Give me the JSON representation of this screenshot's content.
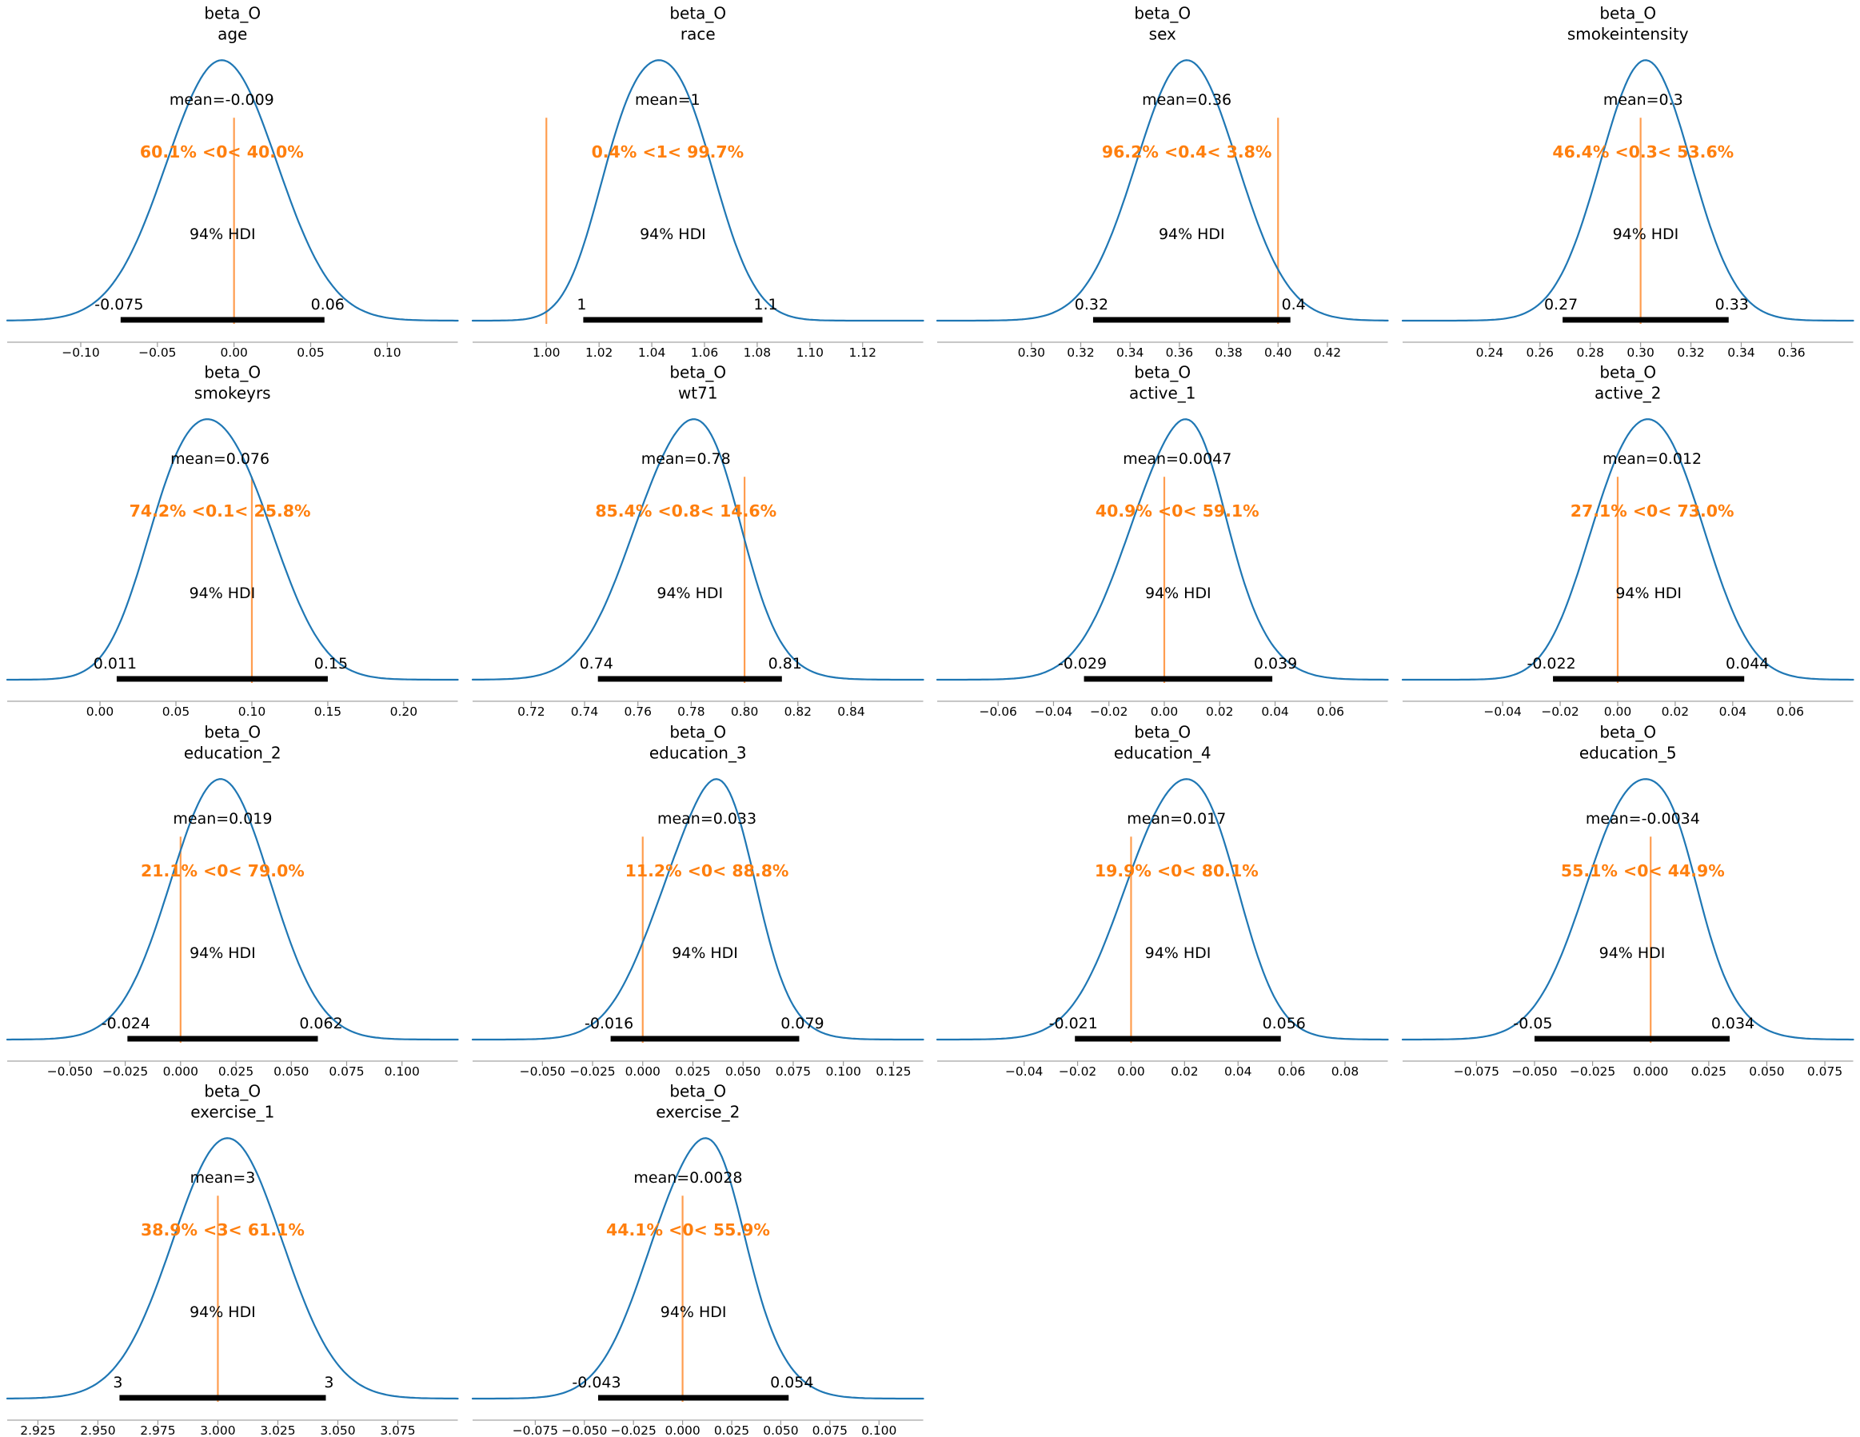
{
  "figure": {
    "kind": "arviz-plot-posterior-grid",
    "rows": 4,
    "cols": 4,
    "hdi_text": "94% HDI"
  },
  "colors": {
    "curve": "#1f77b4",
    "ref_line": "#ff9d4f",
    "prob_text": "#ff7f0e",
    "hdi_bar": "#000000",
    "text": "#000000",
    "spine": "#9a9a9a",
    "background": "#ffffff"
  },
  "chart_data": {
    "type": "area",
    "description": "Grid of 14 posterior KDE density plots (ArviZ plot_posterior style) for beta_O coefficients, each with mean label, reference-value probability text, and 94% HDI bar",
    "plots": [
      {
        "title_line1": "beta_O",
        "title_line2": "age",
        "mean": -0.009,
        "mean_label": "mean=-0.009",
        "mean_x": -0.008,
        "prob_label": "60.1% <0< 40.0%",
        "ref_value": 0,
        "hdi_label": "94% HDI",
        "hdi_low": -0.075,
        "hdi_high": 0.06,
        "hdi_low_label": "-0.075",
        "hdi_high_label": "0.06",
        "hdi_bar": [
          -0.074,
          0.059
        ],
        "xlim": [
          -0.148,
          0.146
        ],
        "ticks": [
          {
            "v": -0.1,
            "label": "−0.10"
          },
          {
            "v": -0.05,
            "label": "−0.05"
          },
          {
            "v": 0.0,
            "label": "0.00"
          },
          {
            "v": 0.05,
            "label": "0.05"
          },
          {
            "v": 0.1,
            "label": "0.10"
          }
        ],
        "curve": [
          {
            "c": -0.008,
            "s": 0.036,
            "w": 1
          }
        ]
      },
      {
        "title_line1": "beta_O",
        "title_line2": "race",
        "mean": 1,
        "mean_label": "mean=1",
        "mean_x": 1.046,
        "prob_label": "0.4% <1< 99.7%",
        "ref_value": 1,
        "hdi_label": "94% HDI",
        "hdi_low": 1,
        "hdi_high": 1.1,
        "hdi_low_label": "1",
        "hdi_high_label": "1.1",
        "hdi_bar": [
          1.014,
          1.082
        ],
        "xlim": [
          0.972,
          1.143
        ],
        "ticks": [
          {
            "v": 1.0,
            "label": "1.00"
          },
          {
            "v": 1.02,
            "label": "1.02"
          },
          {
            "v": 1.04,
            "label": "1.04"
          },
          {
            "v": 1.06,
            "label": "1.06"
          },
          {
            "v": 1.08,
            "label": "1.08"
          },
          {
            "v": 1.1,
            "label": "1.10"
          },
          {
            "v": 1.12,
            "label": "1.12"
          }
        ],
        "curve": [
          {
            "c": 1.049,
            "s": 0.0155,
            "w": 1
          },
          {
            "c": 1.028,
            "s": 0.012,
            "w": 0.5
          }
        ]
      },
      {
        "title_line1": "beta_O",
        "title_line2": "sex",
        "mean": 0.36,
        "mean_label": "mean=0.36",
        "mean_x": 0.363,
        "prob_label": "96.2% <0.4< 3.8%",
        "ref_value": 0.4,
        "hdi_label": "94% HDI",
        "hdi_low": 0.32,
        "hdi_high": 0.4,
        "hdi_low_label": "0.32",
        "hdi_high_label": "0.4",
        "hdi_bar": [
          0.325,
          0.405
        ],
        "xlim": [
          0.2618,
          0.4445
        ],
        "ticks": [
          {
            "v": 0.3,
            "label": "0.30"
          },
          {
            "v": 0.32,
            "label": "0.32"
          },
          {
            "v": 0.34,
            "label": "0.34"
          },
          {
            "v": 0.36,
            "label": "0.36"
          },
          {
            "v": 0.38,
            "label": "0.38"
          },
          {
            "v": 0.4,
            "label": "0.40"
          },
          {
            "v": 0.42,
            "label": "0.42"
          }
        ],
        "curve": [
          {
            "c": 0.363,
            "s": 0.0205,
            "w": 1
          }
        ]
      },
      {
        "title_line1": "beta_O",
        "title_line2": "smokeintensity",
        "mean": 0.3,
        "mean_label": "mean=0.3",
        "mean_x": 0.301,
        "prob_label": "46.4% <0.3< 53.6%",
        "ref_value": 0.3,
        "hdi_label": "94% HDI",
        "hdi_low": 0.27,
        "hdi_high": 0.33,
        "hdi_low_label": "0.27",
        "hdi_high_label": "0.33",
        "hdi_bar": [
          0.269,
          0.335
        ],
        "xlim": [
          0.2054,
          0.3845
        ],
        "ticks": [
          {
            "v": 0.24,
            "label": "0.24"
          },
          {
            "v": 0.26,
            "label": "0.26"
          },
          {
            "v": 0.28,
            "label": "0.28"
          },
          {
            "v": 0.3,
            "label": "0.30"
          },
          {
            "v": 0.32,
            "label": "0.32"
          },
          {
            "v": 0.34,
            "label": "0.34"
          },
          {
            "v": 0.36,
            "label": "0.36"
          }
        ],
        "curve": [
          {
            "c": 0.302,
            "s": 0.018,
            "w": 1
          }
        ]
      },
      {
        "title_line1": "beta_O",
        "title_line2": "smokeyrs",
        "mean": 0.076,
        "mean_label": "mean=0.076",
        "mean_x": 0.079,
        "prob_label": "74.2% <0.1< 25.8%",
        "ref_value": 0.1,
        "hdi_label": "94% HDI",
        "hdi_low": 0.011,
        "hdi_high": 0.15,
        "hdi_low_label": "0.011",
        "hdi_high_label": "0.15",
        "hdi_bar": [
          0.011,
          0.15
        ],
        "xlim": [
          -0.0611,
          0.2356
        ],
        "ticks": [
          {
            "v": 0.0,
            "label": "0.00"
          },
          {
            "v": 0.05,
            "label": "0.05"
          },
          {
            "v": 0.1,
            "label": "0.10"
          },
          {
            "v": 0.15,
            "label": "0.15"
          },
          {
            "v": 0.2,
            "label": "0.20"
          }
        ],
        "curve": [
          {
            "c": 0.085,
            "s": 0.032,
            "w": 1
          },
          {
            "c": 0.047,
            "s": 0.024,
            "w": 0.5
          }
        ]
      },
      {
        "title_line1": "beta_O",
        "title_line2": "wt71",
        "mean": 0.78,
        "mean_label": "mean=0.78",
        "mean_x": 0.778,
        "prob_label": "85.4% <0.8< 14.6%",
        "ref_value": 0.8,
        "hdi_label": "94% HDI",
        "hdi_low": 0.74,
        "hdi_high": 0.81,
        "hdi_low_label": "0.74",
        "hdi_high_label": "0.81",
        "hdi_bar": [
          0.745,
          0.814
        ],
        "xlim": [
          0.698,
          0.867
        ],
        "ticks": [
          {
            "v": 0.72,
            "label": "0.72"
          },
          {
            "v": 0.74,
            "label": "0.74"
          },
          {
            "v": 0.76,
            "label": "0.76"
          },
          {
            "v": 0.78,
            "label": "0.78"
          },
          {
            "v": 0.8,
            "label": "0.80"
          },
          {
            "v": 0.82,
            "label": "0.82"
          },
          {
            "v": 0.84,
            "label": "0.84"
          }
        ],
        "curve": [
          {
            "c": 0.776,
            "s": 0.019,
            "w": 1
          },
          {
            "c": 0.79,
            "s": 0.011,
            "w": 0.25
          }
        ]
      },
      {
        "title_line1": "beta_O",
        "title_line2": "active_1",
        "mean": 0.0047,
        "mean_label": "mean=0.0047",
        "mean_x": 0.0047,
        "prob_label": "40.9% <0< 59.1%",
        "ref_value": 0,
        "hdi_label": "94% HDI",
        "hdi_low": -0.029,
        "hdi_high": 0.039,
        "hdi_low_label": "-0.029",
        "hdi_high_label": "0.039",
        "hdi_bar": [
          -0.029,
          0.039
        ],
        "xlim": [
          -0.082,
          0.0807
        ],
        "ticks": [
          {
            "v": -0.06,
            "label": "−0.06"
          },
          {
            "v": -0.04,
            "label": "−0.04"
          },
          {
            "v": -0.02,
            "label": "−0.02"
          },
          {
            "v": 0.0,
            "label": "0.00"
          },
          {
            "v": 0.02,
            "label": "0.02"
          },
          {
            "v": 0.04,
            "label": "0.04"
          },
          {
            "v": 0.06,
            "label": "0.06"
          }
        ],
        "curve": [
          {
            "c": 0.004,
            "s": 0.018,
            "w": 1
          },
          {
            "c": 0.013,
            "s": 0.009,
            "w": 0.2
          }
        ]
      },
      {
        "title_line1": "beta_O",
        "title_line2": "active_2",
        "mean": 0.012,
        "mean_label": "mean=0.012",
        "mean_x": 0.012,
        "prob_label": "27.1% <0< 73.0%",
        "ref_value": 0,
        "hdi_label": "94% HDI",
        "hdi_low": -0.022,
        "hdi_high": 0.044,
        "hdi_low_label": "-0.022",
        "hdi_high_label": "0.044",
        "hdi_bar": [
          -0.0225,
          0.044
        ],
        "xlim": [
          -0.0748,
          0.0819
        ],
        "ticks": [
          {
            "v": -0.04,
            "label": "−0.04"
          },
          {
            "v": -0.02,
            "label": "−0.02"
          },
          {
            "v": 0.0,
            "label": "0.00"
          },
          {
            "v": 0.02,
            "label": "0.02"
          },
          {
            "v": 0.04,
            "label": "0.04"
          },
          {
            "v": 0.06,
            "label": "0.06"
          }
        ],
        "curve": [
          {
            "c": 0.0165,
            "s": 0.0155,
            "w": 1
          },
          {
            "c": -0.003,
            "s": 0.013,
            "w": 0.5
          }
        ]
      },
      {
        "title_line1": "beta_O",
        "title_line2": "education_2",
        "mean": 0.019,
        "mean_label": "mean=0.019",
        "mean_x": 0.019,
        "prob_label": "21.1% <0< 79.0%",
        "ref_value": 0,
        "hdi_label": "94% HDI",
        "hdi_low": -0.024,
        "hdi_high": 0.062,
        "hdi_low_label": "-0.024",
        "hdi_high_label": "0.062",
        "hdi_bar": [
          -0.024,
          0.062
        ],
        "xlim": [
          -0.0783,
          0.1252
        ],
        "ticks": [
          {
            "v": -0.05,
            "label": "−0.050"
          },
          {
            "v": -0.025,
            "label": "−0.025"
          },
          {
            "v": 0.0,
            "label": "0.000"
          },
          {
            "v": 0.025,
            "label": "0.025"
          },
          {
            "v": 0.05,
            "label": "0.050"
          },
          {
            "v": 0.075,
            "label": "0.075"
          },
          {
            "v": 0.1,
            "label": "0.100"
          }
        ],
        "curve": [
          {
            "c": 0.018,
            "s": 0.0225,
            "w": 1
          }
        ]
      },
      {
        "title_line1": "beta_O",
        "title_line2": "education_3",
        "mean": 0.033,
        "mean_label": "mean=0.033",
        "mean_x": 0.032,
        "prob_label": "11.2% <0< 88.8%",
        "ref_value": 0,
        "hdi_label": "94% HDI",
        "hdi_low": -0.016,
        "hdi_high": 0.079,
        "hdi_low_label": "-0.016",
        "hdi_high_label": "0.079",
        "hdi_bar": [
          -0.016,
          0.078
        ],
        "xlim": [
          -0.0848,
          0.1398
        ],
        "ticks": [
          {
            "v": -0.05,
            "label": "−0.050"
          },
          {
            "v": -0.025,
            "label": "−0.025"
          },
          {
            "v": 0.0,
            "label": "0.000"
          },
          {
            "v": 0.025,
            "label": "0.025"
          },
          {
            "v": 0.05,
            "label": "0.050"
          },
          {
            "v": 0.075,
            "label": "0.075"
          },
          {
            "v": 0.1,
            "label": "0.100"
          },
          {
            "v": 0.125,
            "label": "0.125"
          }
        ],
        "curve": [
          {
            "c": 0.028,
            "s": 0.0235,
            "w": 1
          },
          {
            "c": 0.044,
            "s": 0.014,
            "w": 0.45
          }
        ]
      },
      {
        "title_line1": "beta_O",
        "title_line2": "education_4",
        "mean": 0.017,
        "mean_label": "mean=0.017",
        "mean_x": 0.017,
        "prob_label": "19.9% <0< 80.1%",
        "ref_value": 0,
        "hdi_label": "94% HDI",
        "hdi_low": -0.021,
        "hdi_high": 0.056,
        "hdi_low_label": "-0.021",
        "hdi_high_label": "0.056",
        "hdi_bar": [
          -0.021,
          0.056
        ],
        "xlim": [
          -0.0725,
          0.096
        ],
        "ticks": [
          {
            "v": -0.04,
            "label": "−0.04"
          },
          {
            "v": -0.02,
            "label": "−0.02"
          },
          {
            "v": 0.0,
            "label": "0.00"
          },
          {
            "v": 0.02,
            "label": "0.02"
          },
          {
            "v": 0.04,
            "label": "0.04"
          },
          {
            "v": 0.06,
            "label": "0.06"
          },
          {
            "v": 0.08,
            "label": "0.08"
          }
        ],
        "curve": [
          {
            "c": 0.015,
            "s": 0.019,
            "w": 1
          },
          {
            "c": 0.032,
            "s": 0.012,
            "w": 0.3
          }
        ]
      },
      {
        "title_line1": "beta_O",
        "title_line2": "education_5",
        "mean": -0.0034,
        "mean_label": "mean=-0.0034",
        "mean_x": -0.0034,
        "prob_label": "55.1% <0< 44.9%",
        "ref_value": 0,
        "hdi_label": "94% HDI",
        "hdi_low": -0.05,
        "hdi_high": 0.034,
        "hdi_low_label": "-0.05",
        "hdi_high_label": "0.034",
        "hdi_bar": [
          -0.05,
          0.034
        ],
        "xlim": [
          -0.1068,
          0.0872
        ],
        "ticks": [
          {
            "v": -0.075,
            "label": "−0.075"
          },
          {
            "v": -0.05,
            "label": "−0.050"
          },
          {
            "v": -0.025,
            "label": "−0.025"
          },
          {
            "v": 0.0,
            "label": "0.000"
          },
          {
            "v": 0.025,
            "label": "0.025"
          },
          {
            "v": 0.05,
            "label": "0.050"
          },
          {
            "v": 0.075,
            "label": "0.075"
          }
        ],
        "curve": [
          {
            "c": -0.006,
            "s": 0.022,
            "w": 1
          },
          {
            "c": 0.012,
            "s": 0.01,
            "w": 0.15
          }
        ]
      },
      {
        "title_line1": "beta_O",
        "title_line2": "exercise_1",
        "mean": 3,
        "mean_label": "mean=3",
        "mean_x": 3.002,
        "prob_label": "38.9% <3< 61.1%",
        "ref_value": 3,
        "hdi_label": "94% HDI",
        "hdi_low": 3,
        "hdi_high": 3,
        "hdi_low_label": "3",
        "hdi_high_label": "3",
        "hdi_bar": [
          2.959,
          3.045
        ],
        "xlim": [
          2.9122,
          3.1
        ],
        "ticks": [
          {
            "v": 2.925,
            "label": "2.925"
          },
          {
            "v": 2.95,
            "label": "2.950"
          },
          {
            "v": 2.975,
            "label": "2.975"
          },
          {
            "v": 3.0,
            "label": "3.000"
          },
          {
            "v": 3.025,
            "label": "3.025"
          },
          {
            "v": 3.05,
            "label": "3.050"
          },
          {
            "v": 3.075,
            "label": "3.075"
          }
        ],
        "curve": [
          {
            "c": 3.004,
            "s": 0.0228,
            "w": 1
          }
        ]
      },
      {
        "title_line1": "beta_O",
        "title_line2": "exercise_2",
        "mean": 0.0028,
        "mean_label": "mean=0.0028",
        "mean_x": 0.0028,
        "prob_label": "44.1% <0< 55.9%",
        "ref_value": 0,
        "hdi_label": "94% HDI",
        "hdi_low": -0.043,
        "hdi_high": 0.054,
        "hdi_low_label": "-0.043",
        "hdi_high_label": "0.054",
        "hdi_bar": [
          -0.043,
          0.054
        ],
        "xlim": [
          -0.1069,
          0.1225
        ],
        "ticks": [
          {
            "v": -0.075,
            "label": "−0.075"
          },
          {
            "v": -0.05,
            "label": "−0.050"
          },
          {
            "v": -0.025,
            "label": "−0.025"
          },
          {
            "v": 0.0,
            "label": "0.000"
          },
          {
            "v": 0.025,
            "label": "0.025"
          },
          {
            "v": 0.05,
            "label": "0.050"
          },
          {
            "v": 0.075,
            "label": "0.075"
          },
          {
            "v": 0.1,
            "label": "0.100"
          }
        ],
        "curve": [
          {
            "c": 0.006,
            "s": 0.0245,
            "w": 1
          },
          {
            "c": 0.02,
            "s": 0.012,
            "w": 0.2
          }
        ]
      }
    ]
  }
}
